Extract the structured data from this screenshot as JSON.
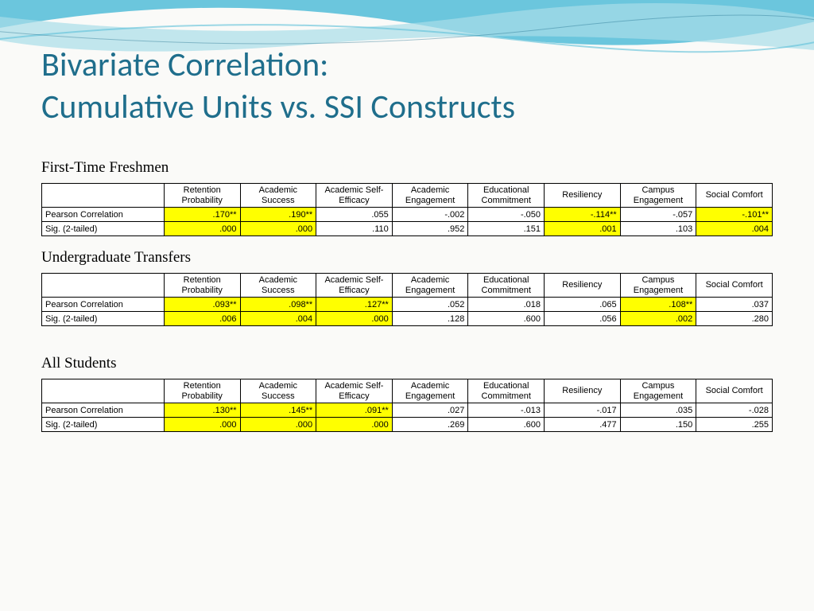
{
  "title_line1": "Bivariate Correlation:",
  "title_line2": "Cumulative Units vs. SSI Constructs",
  "columns": [
    "Retention Probability",
    "Academic Success",
    "Academic Self-Efficacy",
    "Academic Engagement",
    "Educational Commitment",
    "Resiliency",
    "Campus Engagement",
    "Social Comfort"
  ],
  "row_labels": [
    "Pearson Correlation",
    "Sig. (2-tailed)"
  ],
  "highlight_color": "#ffff00",
  "title_color": "#1f6e8c",
  "wave_color_dark": "#5bc0d9",
  "wave_color_light": "#a8dde8",
  "sections": [
    {
      "label": "First-Time Freshmen",
      "pearson": [
        ".170**",
        ".190**",
        ".055",
        "-.002",
        "-.050",
        "-.114**",
        "-.057",
        "-.101**"
      ],
      "pearson_hl": [
        true,
        true,
        false,
        false,
        false,
        true,
        false,
        true
      ],
      "sig": [
        ".000",
        ".000",
        ".110",
        ".952",
        ".151",
        ".001",
        ".103",
        ".004"
      ],
      "sig_hl": [
        true,
        true,
        false,
        false,
        false,
        true,
        false,
        true
      ]
    },
    {
      "label": "Undergraduate Transfers",
      "pearson": [
        ".093**",
        ".098**",
        ".127**",
        ".052",
        ".018",
        ".065",
        ".108**",
        ".037"
      ],
      "pearson_hl": [
        true,
        true,
        true,
        false,
        false,
        false,
        true,
        false
      ],
      "sig": [
        ".006",
        ".004",
        ".000",
        ".128",
        ".600",
        ".056",
        ".002",
        ".280"
      ],
      "sig_hl": [
        true,
        true,
        true,
        false,
        false,
        false,
        true,
        false
      ]
    },
    {
      "label": "All Students",
      "extra_gap": true,
      "pearson": [
        ".130**",
        ".145**",
        ".091**",
        ".027",
        "-.013",
        "-.017",
        ".035",
        "-.028"
      ],
      "pearson_hl": [
        true,
        true,
        true,
        false,
        false,
        false,
        false,
        false
      ],
      "sig": [
        ".000",
        ".000",
        ".000",
        ".269",
        ".600",
        ".477",
        ".150",
        ".255"
      ],
      "sig_hl": [
        true,
        true,
        true,
        false,
        false,
        false,
        false,
        false
      ]
    }
  ]
}
